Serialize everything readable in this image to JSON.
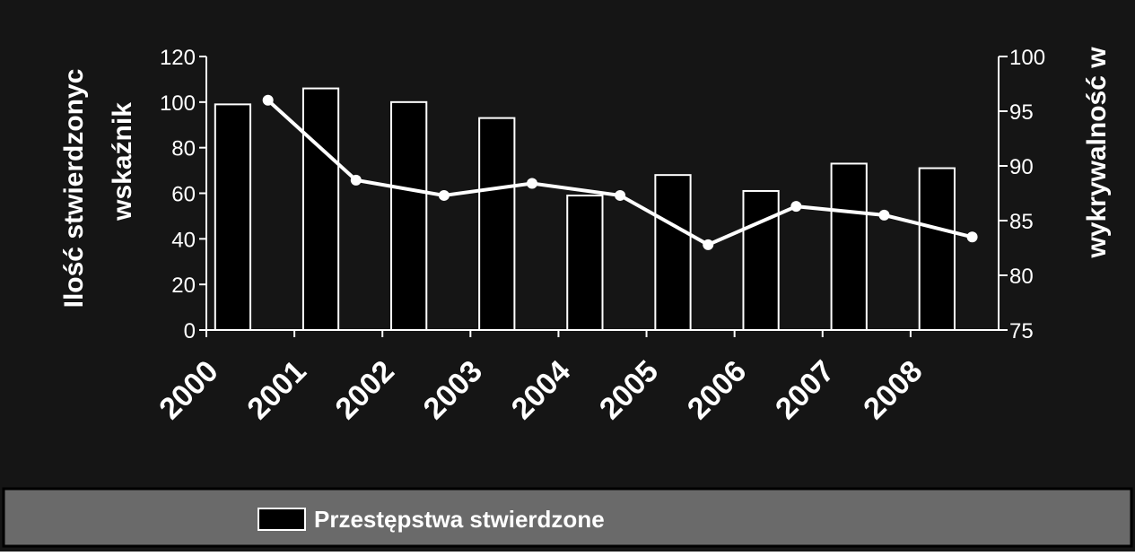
{
  "chart_data": {
    "type": "bar",
    "ylabel": [
      "Ilość stwierdzonyc",
      "wskaźnik"
    ],
    "y2label": "wykrywalność w",
    "categories": [
      "2000",
      "2001",
      "2002",
      "2003",
      "2004",
      "2005",
      "2006",
      "2007",
      "2008"
    ],
    "series": [
      {
        "name": "Przestępstwa stwierdzone",
        "type": "bar",
        "color": "#000000",
        "values": [
          99,
          106,
          100,
          93,
          59,
          68,
          61,
          73,
          71
        ]
      },
      {
        "type": "line",
        "axis": "y2",
        "color": "#ffffff",
        "values": [
          96.0,
          88.7,
          87.3,
          88.4,
          87.3,
          82.8,
          86.3,
          85.5,
          83.5
        ]
      }
    ],
    "ylim": [
      0,
      120
    ],
    "yticks": [
      0,
      20,
      40,
      60,
      80,
      100,
      120
    ],
    "y2lim": [
      75,
      100
    ],
    "y2ticks": [
      75,
      80,
      85,
      90,
      95,
      100
    ],
    "legend": "bottom"
  }
}
